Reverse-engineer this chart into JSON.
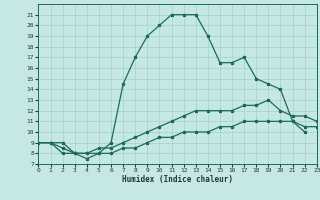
{
  "xlabel": "Humidex (Indice chaleur)",
  "bg_color": "#c5e8e5",
  "grid_color": "#a8d4d0",
  "line_color": "#1a6b5a",
  "xlim": [
    0,
    23
  ],
  "ylim": [
    7,
    22
  ],
  "xticks": [
    0,
    1,
    2,
    3,
    4,
    5,
    6,
    7,
    8,
    9,
    10,
    11,
    12,
    13,
    14,
    15,
    16,
    17,
    18,
    19,
    20,
    21,
    22,
    23
  ],
  "yticks": [
    7,
    8,
    9,
    10,
    11,
    12,
    13,
    14,
    15,
    16,
    17,
    18,
    19,
    20,
    21
  ],
  "lines": [
    {
      "x": [
        0,
        1,
        2,
        3,
        4,
        5,
        6,
        7,
        8,
        9,
        10,
        11,
        12,
        13,
        14,
        15,
        16,
        17,
        18,
        19,
        20,
        21,
        22
      ],
      "y": [
        9,
        9,
        9,
        8,
        7.5,
        8,
        9,
        14.5,
        17,
        19,
        20,
        21,
        21,
        21,
        19,
        16.5,
        16.5,
        17,
        15,
        14.5,
        14,
        11,
        10
      ]
    },
    {
      "x": [
        0,
        1,
        2,
        3,
        4,
        5,
        6,
        7,
        8,
        9,
        10,
        11,
        12,
        13,
        14,
        15,
        16,
        17,
        18,
        19,
        20,
        21,
        22,
        23
      ],
      "y": [
        9,
        9,
        8.5,
        8,
        8,
        8.5,
        8.5,
        9,
        9.5,
        10,
        10.5,
        11,
        11.5,
        12,
        12,
        12,
        12,
        12.5,
        12.5,
        13,
        12,
        11.5,
        11.5,
        11
      ]
    },
    {
      "x": [
        0,
        1,
        2,
        3,
        4,
        5,
        6,
        7,
        8,
        9,
        10,
        11,
        12,
        13,
        14,
        15,
        16,
        17,
        18,
        19,
        20,
        21,
        22,
        23
      ],
      "y": [
        9,
        9,
        8,
        8,
        8,
        8,
        8,
        8.5,
        8.5,
        9,
        9.5,
        9.5,
        10,
        10,
        10,
        10.5,
        10.5,
        11,
        11,
        11,
        11,
        11,
        10.5,
        10.5
      ]
    }
  ]
}
